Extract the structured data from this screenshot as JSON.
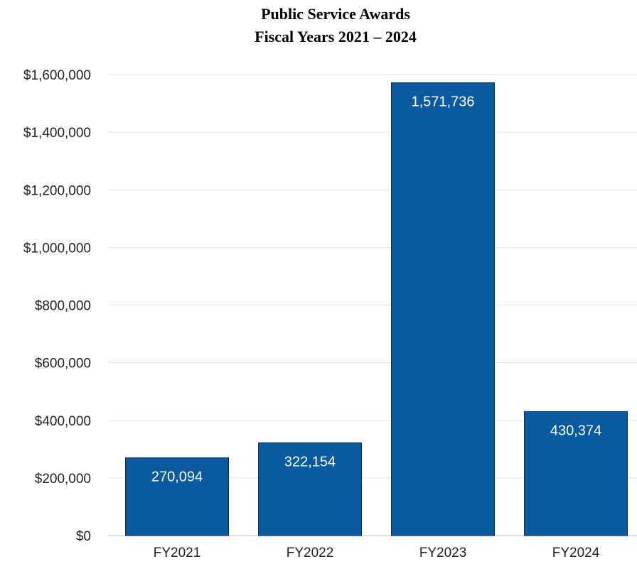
{
  "chart_data": {
    "type": "bar",
    "title": "Public Service Awards",
    "subtitle": "Fiscal Years 2021 – 2024",
    "xlabel": "",
    "ylabel": "",
    "categories": [
      "FY2021",
      "FY2022",
      "FY2023",
      "FY2024"
    ],
    "values": [
      270094,
      322154,
      1571736,
      430374
    ],
    "data_labels": [
      "270,094",
      "322,154",
      "1,571,736",
      "430,374"
    ],
    "ylim": [
      0,
      1600000
    ],
    "yticks": [
      0,
      200000,
      400000,
      600000,
      800000,
      1000000,
      1200000,
      1400000,
      1600000
    ],
    "ytick_labels": [
      "$0",
      "$200,000",
      "$400,000",
      "$600,000",
      "$800,000",
      "$1,000,000",
      "$1,200,000",
      "$1,400,000",
      "$1,600,000"
    ],
    "grid": true,
    "legend": "none",
    "bar_color": "#0a5aa0",
    "grid_color": "#e3e3e3"
  }
}
